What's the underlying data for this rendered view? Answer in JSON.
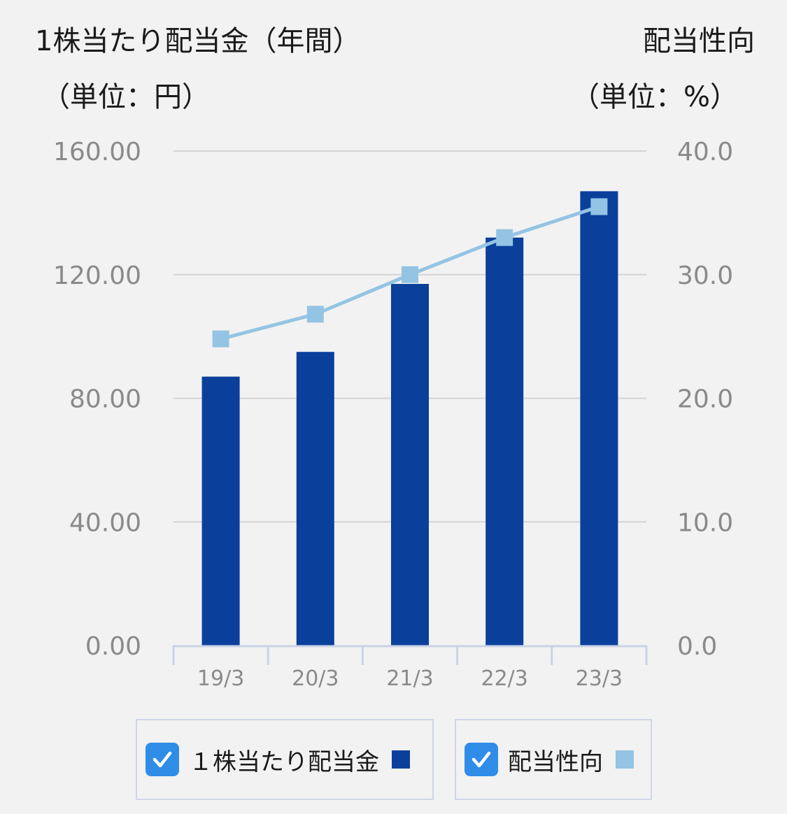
{
  "header": {
    "left_title": "1株当たり配当金（年間）",
    "left_unit": "（単位：円）",
    "right_title": "配当性向",
    "right_unit": "（単位：%）"
  },
  "chart_data": {
    "type": "bar",
    "categories": [
      "19/3",
      "20/3",
      "21/3",
      "22/3",
      "23/3"
    ],
    "series": [
      {
        "name": "1株当たり配当金",
        "type": "bar",
        "axis": "left",
        "color": "#0a3f9c",
        "values": [
          87.0,
          95.0,
          117.0,
          132.0,
          147.0
        ]
      },
      {
        "name": "配当性向",
        "type": "line",
        "axis": "right",
        "color": "#93c4e3",
        "values": [
          24.8,
          26.8,
          30.0,
          33.0,
          35.5
        ]
      }
    ],
    "y_left": {
      "min": 0,
      "max": 160,
      "ticks": [
        "0.00",
        "40.00",
        "80.00",
        "120.00",
        "160.00"
      ]
    },
    "y_right": {
      "min": 0,
      "max": 40,
      "ticks": [
        "0.0",
        "10.0",
        "20.0",
        "30.0",
        "40.0"
      ]
    },
    "grid": true,
    "legend_position": "bottom"
  },
  "legend": {
    "bar_label": "１株当たり配当金",
    "line_label": "配当性向"
  }
}
